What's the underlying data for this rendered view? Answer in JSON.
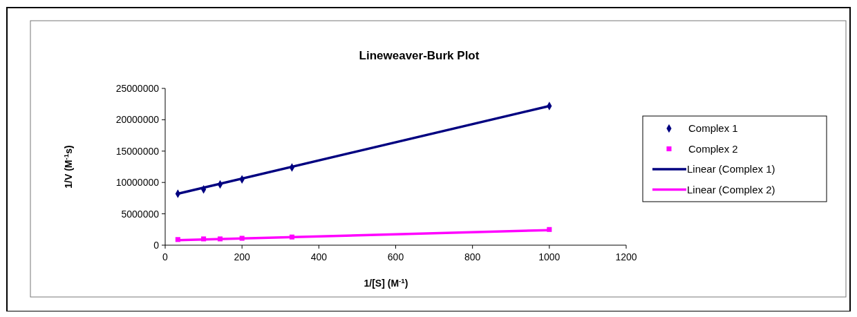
{
  "chart_data": {
    "type": "scatter",
    "title": "Lineweaver-Burk Plot",
    "xlabel": "1/[S] (M$^{-1}$)",
    "ylabel": "1/V (M$^{-1}$s)",
    "xlim": [
      0,
      1200
    ],
    "xticks": [
      0,
      200,
      400,
      600,
      800,
      1000,
      1200
    ],
    "ylim": [
      0,
      25000000
    ],
    "yticks": [
      0,
      5000000,
      10000000,
      15000000,
      20000000,
      25000000
    ],
    "grid": false,
    "legend": "right",
    "series": [
      {
        "name": "Complex 1",
        "marker": "diamond",
        "color": "#000080",
        "x": [
          33,
          100,
          143,
          200,
          330,
          1000
        ],
        "values": [
          8200000,
          8900000,
          9700000,
          10500000,
          12400000,
          22200000
        ]
      },
      {
        "name": "Complex 2",
        "marker": "square",
        "color": "#ff00ff",
        "x": [
          33,
          100,
          143,
          200,
          330,
          1000
        ],
        "values": [
          900000,
          1000000,
          1000000,
          1100000,
          1300000,
          2500000
        ]
      },
      {
        "name": "Linear (Complex 1)",
        "type": "line",
        "marker": "none",
        "color": "#000080",
        "x": [
          33,
          1000
        ],
        "values": [
          8200000,
          22200000
        ]
      },
      {
        "name": "Linear (Complex 2)",
        "type": "line",
        "marker": "none",
        "color": "#ff00ff",
        "x": [
          33,
          1000
        ],
        "values": [
          800000,
          2400000
        ]
      }
    ]
  }
}
